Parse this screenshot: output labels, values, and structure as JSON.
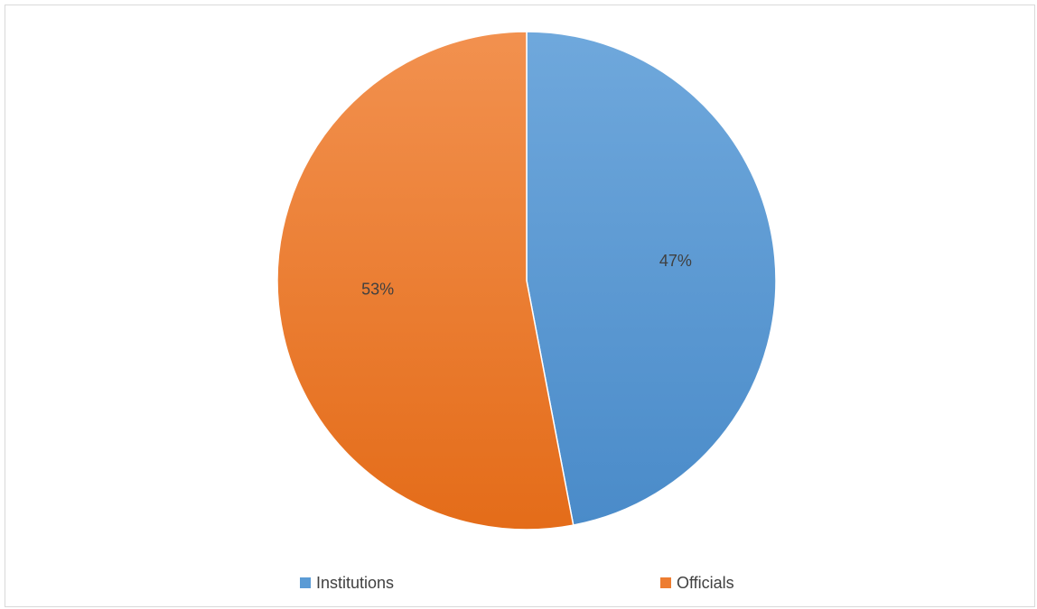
{
  "chart_data": {
    "type": "pie",
    "slices": [
      {
        "name": "Institutions",
        "value": 47,
        "label": "47%",
        "color": "#5b9bd5"
      },
      {
        "name": "Officials",
        "value": 53,
        "label": "53%",
        "color": "#ed7d31"
      }
    ],
    "legend": {
      "position": "bottom"
    },
    "start_angle_deg": 0,
    "direction": "clockwise"
  }
}
